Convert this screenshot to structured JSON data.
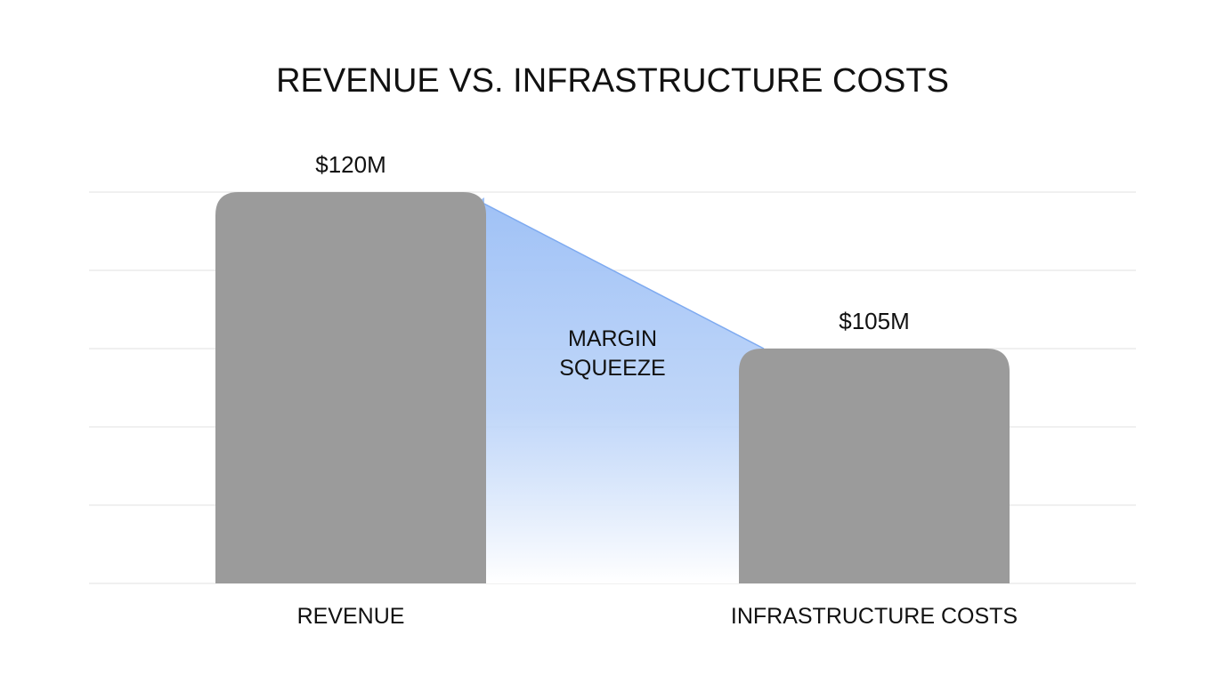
{
  "chart_data": {
    "type": "bar",
    "title": "REVENUE VS. INFRASTRUCTURE COSTS",
    "categories": [
      "REVENUE",
      "INFRASTRUCTURE COSTS"
    ],
    "values": [
      120,
      105
    ],
    "data_labels": [
      "$120M",
      "$105M"
    ],
    "unit": "$M",
    "ylim": [
      82.5,
      120
    ],
    "grid": true,
    "annotation": {
      "lines": [
        "MARGIN",
        "SQUEEZE"
      ]
    },
    "colors": {
      "bar": "#9b9b9b",
      "gap_fill": "#9fc1f6",
      "gap_line": "#7eaaf0",
      "grid": "#e2e2e2"
    }
  }
}
